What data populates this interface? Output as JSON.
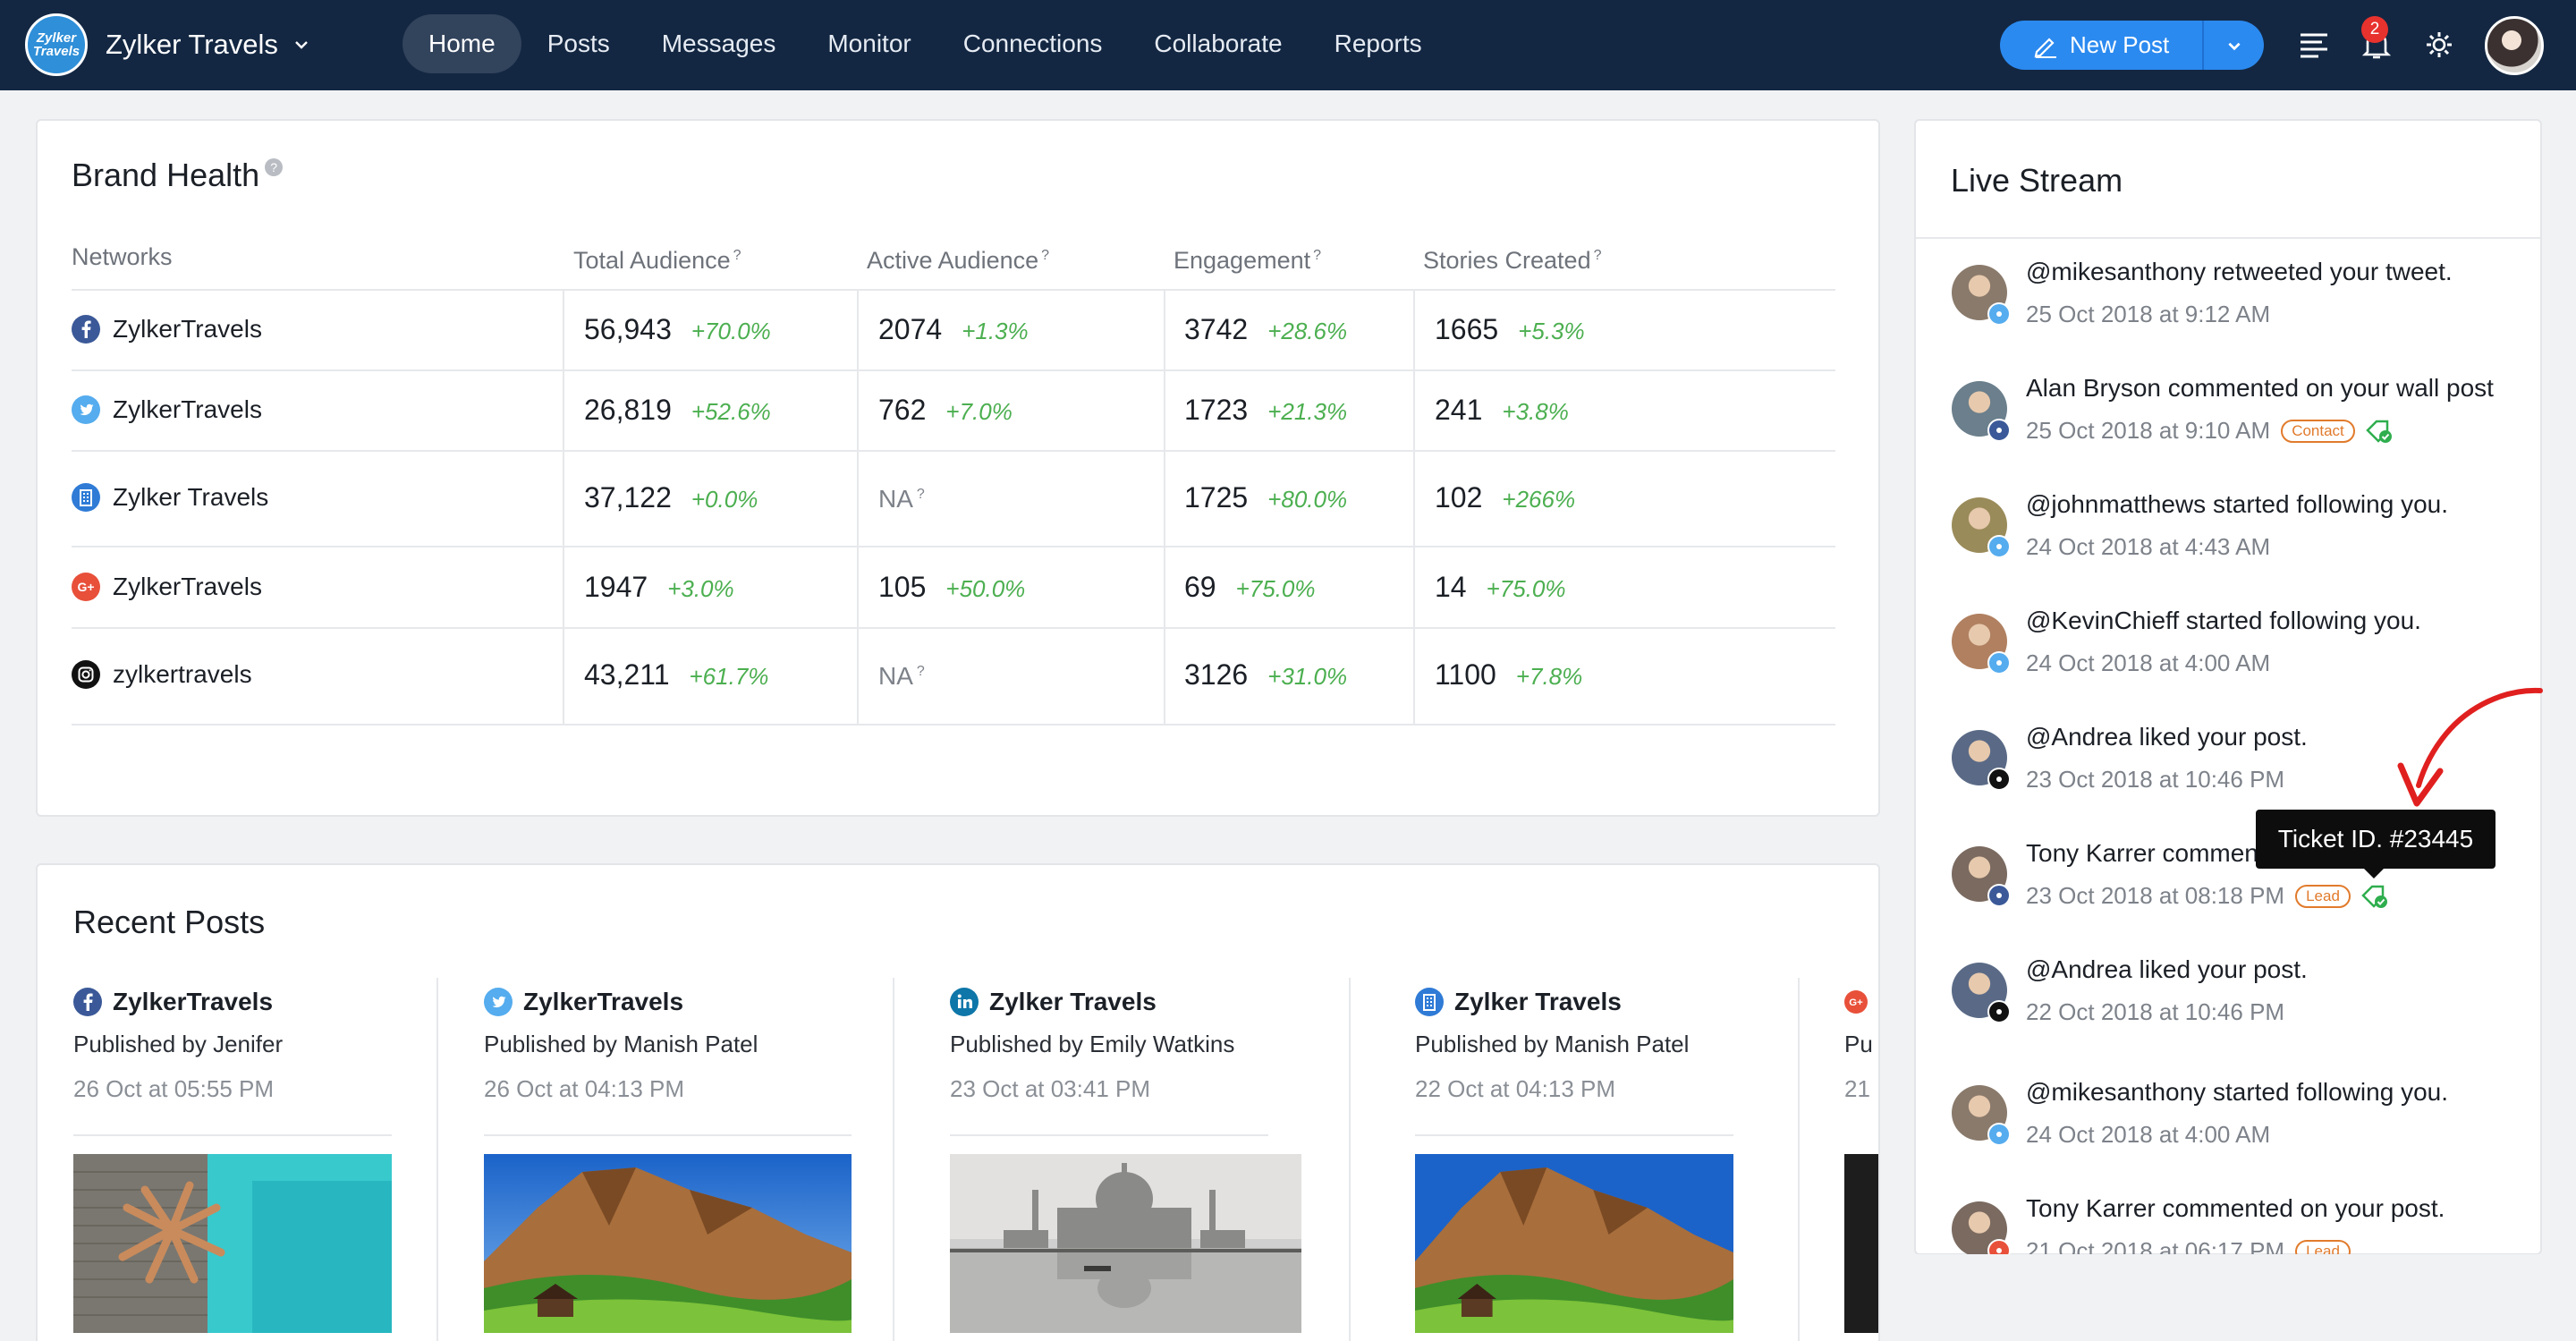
{
  "app": {
    "brand_name": "Zylker Travels",
    "logo_text": "Zylker Travels",
    "nav": [
      "Home",
      "Posts",
      "Messages",
      "Monitor",
      "Connections",
      "Collaborate",
      "Reports"
    ],
    "active_tab": "Home",
    "new_post_label": "New Post",
    "notification_count": "2",
    "accent_color": "#2b8af0",
    "nav_bg": "#132742"
  },
  "brand_health": {
    "title": "Brand Health",
    "headers": {
      "networks": "Networks",
      "total_audience": "Total Audience",
      "active_audience": "Active Audience",
      "engagement": "Engagement",
      "stories_created": "Stories Created"
    },
    "rows": [
      {
        "network": "facebook",
        "icon": "facebook-icon",
        "name": "ZylkerTravels",
        "total": "56,943",
        "total_pct": "+70.0%",
        "active": "2074",
        "active_pct": "+1.3%",
        "engagement": "3742",
        "engagement_pct": "+28.6%",
        "stories": "1665",
        "stories_pct": "+5.3%"
      },
      {
        "network": "twitter",
        "icon": "twitter-icon",
        "name": "ZylkerTravels",
        "total": "26,819",
        "total_pct": "+52.6%",
        "active": "762",
        "active_pct": "+7.0%",
        "engagement": "1723",
        "engagement_pct": "+21.3%",
        "stories": "241",
        "stories_pct": "+3.8%"
      },
      {
        "network": "linkedin-page",
        "icon": "company-page-icon",
        "name": "Zylker Travels",
        "total": "37,122",
        "total_pct": "+0.0%",
        "active": "NA",
        "active_pct": "",
        "engagement": "1725",
        "engagement_pct": "+80.0%",
        "stories": "102",
        "stories_pct": "+266%"
      },
      {
        "network": "google-plus",
        "icon": "google-plus-icon",
        "name": "ZylkerTravels",
        "total": "1947",
        "total_pct": "+3.0%",
        "active": "105",
        "active_pct": "+50.0%",
        "engagement": "69",
        "engagement_pct": "+75.0%",
        "stories": "14",
        "stories_pct": "+75.0%"
      },
      {
        "network": "instagram",
        "icon": "instagram-icon",
        "name": "zylkertravels",
        "total": "43,211",
        "total_pct": "+61.7%",
        "active": "NA",
        "active_pct": "",
        "engagement": "3126",
        "engagement_pct": "+31.0%",
        "stories": "1100",
        "stories_pct": "+7.8%"
      }
    ]
  },
  "recent_posts": {
    "title": "Recent Posts",
    "posts": [
      {
        "icon": "facebook-icon",
        "account": "ZylkerTravels",
        "by": "Published by Jenifer",
        "date": "26 Oct at 05:55 PM",
        "image": "beach-dock-photo"
      },
      {
        "icon": "twitter-icon",
        "account": "ZylkerTravels",
        "by": "Published by Manish Patel",
        "date": "26 Oct at 04:13 PM",
        "image": "mountain-valley-photo"
      },
      {
        "icon": "linkedin-icon",
        "account": "Zylker Travels",
        "by": "Published by Emily Watkins",
        "date": "23 Oct at 03:41 PM",
        "image": "taj-mahal-photo"
      },
      {
        "icon": "company-page-icon",
        "account": "Zylker Travels",
        "by": "Published by Manish Patel",
        "date": "22 Oct at 04:13 PM",
        "image": "mountain-valley-photo"
      },
      {
        "icon": "google-plus-icon",
        "account": "",
        "by": "Pu",
        "date": "21",
        "image": "dark-photo"
      }
    ]
  },
  "live_stream": {
    "title": "Live Stream",
    "items": [
      {
        "text": "@mikesanthony retweeted your tweet.",
        "time": "25 Oct 2018 at 9:12 AM",
        "network": "twitter",
        "tag": ""
      },
      {
        "text": "Alan Bryson commented on your wall post",
        "time": "25 Oct 2018 at 9:10 AM",
        "network": "facebook",
        "tag": "Contact"
      },
      {
        "text": "@johnmatthews started following you.",
        "time": "24 Oct 2018 at 4:43 AM",
        "network": "twitter",
        "tag": ""
      },
      {
        "text": "@KevinChieff started following you.",
        "time": "24 Oct 2018 at 4:00 AM",
        "network": "twitter",
        "tag": ""
      },
      {
        "text": "@Andrea liked your post.",
        "time": "23 Oct 2018 at 10:46 PM",
        "network": "instagram",
        "tag": ""
      },
      {
        "text": "Tony Karrer commen",
        "time": "23 Oct 2018 at 08:18 PM",
        "network": "facebook",
        "tag": "Lead"
      },
      {
        "text": "@Andrea liked your post.",
        "time": "22 Oct 2018 at 10:46 PM",
        "network": "instagram",
        "tag": ""
      },
      {
        "text": "@mikesanthony started following you.",
        "time": "24 Oct 2018 at 4:00 AM",
        "network": "twitter",
        "tag": ""
      },
      {
        "text": "Tony Karrer commented on your post.",
        "time": "21 Oct 2018 at 06:17 PM",
        "network": "google-plus",
        "tag": "Lead"
      }
    ],
    "tooltip": "Ticket ID. #23445"
  },
  "colors": {
    "positive": "#4caf50",
    "tag_orange": "#e17b2c",
    "annotation_red": "#e0201f"
  }
}
